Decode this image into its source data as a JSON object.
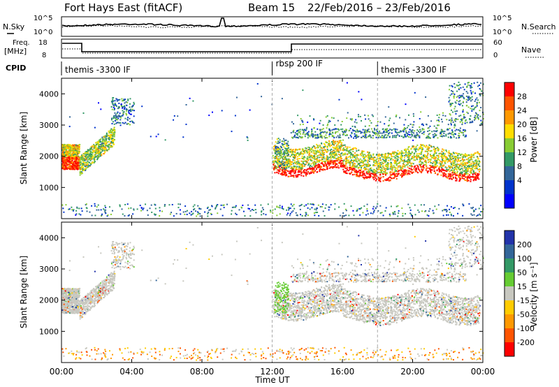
{
  "header": {
    "station": "Fort Hays East (fitACF)",
    "beam": "Beam 15",
    "date_range": "22/Feb/2016 – 23/Feb/2016"
  },
  "top_panels": {
    "nsky": {
      "left_label": "N.Sky",
      "right_label": "N.Search",
      "left_ticks": [
        "10^5",
        "10^0"
      ],
      "right_ticks": [
        "10^5",
        "10^0"
      ]
    },
    "freq": {
      "left_label": "Freq.",
      "left_unit": "[MHz]",
      "right_label": "Nave",
      "left_ticks": [
        "18",
        "8"
      ],
      "right_ticks": [
        "60",
        "0"
      ]
    },
    "cpid": {
      "label": "CPID",
      "segments": [
        {
          "text": "themis -3300 IF",
          "start_hour": 0
        },
        {
          "text": "rbsp 200 IF",
          "start_hour": 12
        },
        {
          "text": "themis -3300 IF",
          "start_hour": 18
        }
      ]
    }
  },
  "chart_data": [
    {
      "type": "heatmap",
      "name": "power",
      "ylabel": "Slant Range [km]",
      "ylim": [
        0,
        4500
      ],
      "yticks": [
        "4000",
        "3000",
        "2000",
        "1000"
      ],
      "ytick_values": [
        4000,
        3000,
        2000,
        1000
      ],
      "colorbar": {
        "label": "Power [dB]",
        "ticks": [
          "28",
          "24",
          "20",
          "16",
          "12",
          "8",
          "4"
        ],
        "colors": [
          "#ff0000",
          "#ff5500",
          "#ff9900",
          "#ffdd00",
          "#88cc33",
          "#339966",
          "#336699",
          "#0033cc",
          "#0000ff"
        ]
      }
    },
    {
      "type": "heatmap",
      "name": "velocity",
      "ylabel": "Slant Range [km]",
      "ylim": [
        0,
        4500
      ],
      "yticks": [
        "4000",
        "3000",
        "2000",
        "1000"
      ],
      "ytick_values": [
        4000,
        3000,
        2000,
        1000
      ],
      "colorbar": {
        "label": "Velocity [m s⁻¹]",
        "ticks": [
          "200",
          "100",
          "50",
          "15",
          "-15",
          "-50",
          "-100",
          "-200"
        ],
        "colors": [
          "#2233aa",
          "#336699",
          "#339966",
          "#66cc33",
          "#c8c8c0",
          "#ffcc00",
          "#ff9900",
          "#ff5500",
          "#ff0000"
        ]
      }
    }
  ],
  "xaxis": {
    "label": "Time UT",
    "ticks": [
      "00:00",
      "04:00",
      "08:00",
      "12:00",
      "16:00",
      "20:00",
      "00:00"
    ],
    "tick_values": [
      0,
      4,
      8,
      12,
      16,
      20,
      24
    ],
    "xlim": [
      0,
      24
    ]
  }
}
